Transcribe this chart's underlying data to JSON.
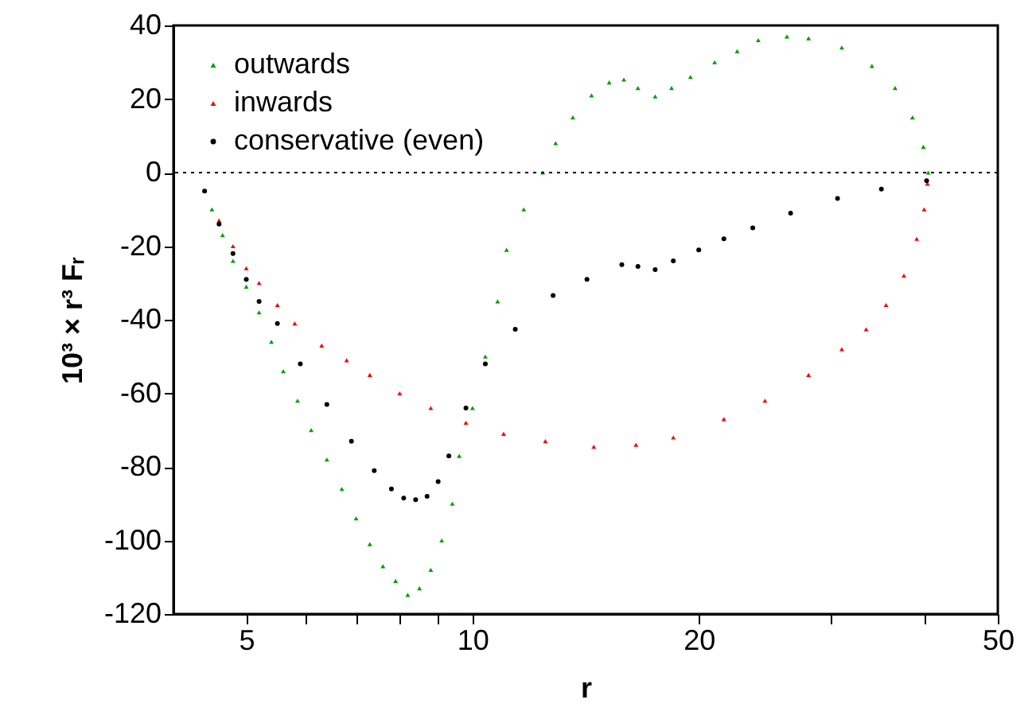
{
  "chart_data": {
    "type": "scatter",
    "xlabel": "r",
    "ylabel": "10³ × r³ Fᵣ",
    "log": "x",
    "xlim": [
      4,
      50
    ],
    "ylim": [
      -120,
      40
    ],
    "xticks": [
      5,
      {
        "value": 6,
        "label": null
      },
      {
        "value": 7,
        "label": null
      },
      {
        "value": 8,
        "label": null
      },
      {
        "value": 9,
        "label": null
      },
      10,
      20,
      {
        "value": 30,
        "label": null
      },
      {
        "value": 40,
        "label": null
      },
      50
    ],
    "yticks": [
      -120,
      -100,
      -80,
      -60,
      -40,
      -20,
      0,
      20,
      40
    ],
    "grid": false,
    "legend": "top left",
    "ref_lines": [
      {
        "axis": "y",
        "value": 0,
        "label": null,
        "color": "#000000",
        "line_style": "dotted"
      }
    ],
    "series": [
      {
        "name": "outwards",
        "color": "#00a000",
        "marker": "triangle",
        "x": [
          4.5,
          4.65,
          4.8,
          5.0,
          5.2,
          5.4,
          5.6,
          5.85,
          6.1,
          6.4,
          6.7,
          7.0,
          7.3,
          7.6,
          7.9,
          8.2,
          8.5,
          8.8,
          9.1,
          9.4,
          9.6,
          10.0,
          10.4,
          10.8,
          11.1,
          11.7,
          12.4,
          12.9,
          13.6,
          14.4,
          15.2,
          15.9,
          16.6,
          17.5,
          18.4,
          19.5,
          21,
          22.5,
          24,
          26.2,
          28,
          31,
          34,
          36.5,
          38.5,
          39.8,
          40.4
        ],
        "values": [
          -10,
          -17,
          -24,
          -31,
          -38,
          -46,
          -54,
          -62,
          -70,
          -78,
          -86,
          -94,
          -101,
          -107,
          -111,
          -114.8,
          -113,
          -108,
          -100,
          -90,
          -77,
          -64,
          -50,
          -35,
          -21,
          -10,
          0,
          8,
          15,
          21,
          24.5,
          25.3,
          23,
          20.7,
          23,
          26,
          30,
          33,
          36,
          37,
          36.5,
          34,
          29,
          23,
          15,
          7,
          0
        ]
      },
      {
        "name": "inwards",
        "color": "#ff0000",
        "marker": "triangle",
        "x": [
          4.6,
          4.8,
          5.0,
          5.2,
          5.5,
          5.8,
          6.3,
          6.8,
          7.3,
          8.0,
          8.8,
          9.8,
          11,
          12.5,
          14.5,
          16.5,
          18.5,
          21.6,
          24.5,
          28,
          31,
          33.4,
          35.5,
          37.5,
          39,
          39.9,
          40.3
        ],
        "values": [
          -13,
          -20,
          -26,
          -30,
          -36,
          -41,
          -47,
          -51,
          -55,
          -60,
          -64,
          -68,
          -71,
          -73,
          -74.5,
          -74,
          -72,
          -67,
          -62,
          -55,
          -48,
          -42.6,
          -36,
          -28,
          -18,
          -10,
          -3
        ]
      },
      {
        "name": "conservative (even)",
        "color": "#000000",
        "marker": "circle",
        "x": [
          4.4,
          4.6,
          4.8,
          5.0,
          5.2,
          5.5,
          5.9,
          6.4,
          6.9,
          7.4,
          7.8,
          8.1,
          8.4,
          8.7,
          9.0,
          9.3,
          9.8,
          10.4,
          11.4,
          12.8,
          14.2,
          15.8,
          16.6,
          17.5,
          18.5,
          20,
          21.6,
          23.6,
          26.5,
          30.6,
          35,
          40.2
        ],
        "values": [
          -5,
          -14,
          -22,
          -29,
          -35,
          -41,
          -52,
          -63,
          -73,
          -81,
          -86,
          -88.5,
          -88.9,
          -88,
          -84,
          -77,
          -64,
          -52,
          -42.6,
          -33.4,
          -29,
          -25,
          -25.5,
          -26.4,
          -24,
          -21,
          -18,
          -15,
          -11,
          -7,
          -4.5,
          -2.2
        ]
      }
    ]
  }
}
